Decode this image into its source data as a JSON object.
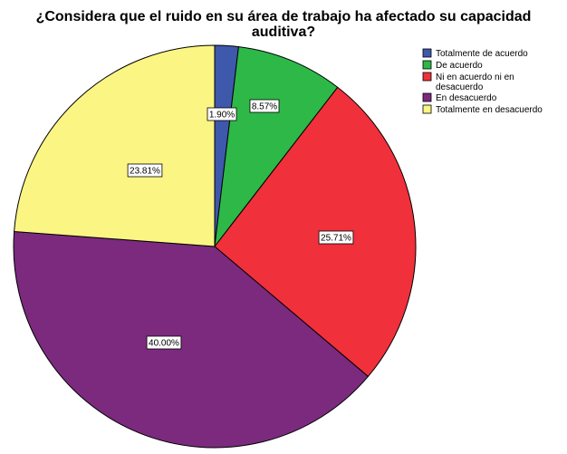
{
  "chart_data": {
    "type": "pie",
    "title_lines": [
      "¿Considera que el ruido en su área de trabajo ha afectado su capacidad",
      "auditiva?"
    ],
    "categories": [
      "Totalmente de acuerdo",
      "De acuerdo",
      "Ni en acuerdo ni en desacuerdo",
      "En desacuerdo",
      "Totalmente en desacuerdo"
    ],
    "legend_lines": [
      [
        "Totalmente de acuerdo"
      ],
      [
        "De acuerdo"
      ],
      [
        "Ni en acuerdo ni en",
        "desacuerdo"
      ],
      [
        "En desacuerdo"
      ],
      [
        "Totalmente en desacuerdo"
      ]
    ],
    "values": [
      1.9,
      8.57,
      25.71,
      40.0,
      23.81
    ],
    "data_labels": [
      "1.90%",
      "8.57%",
      "25.71%",
      "40.00%",
      "23.81%"
    ],
    "colors": [
      "#3e58ac",
      "#2eb848",
      "#f0303a",
      "#7b2a7e",
      "#fbf583"
    ],
    "legend_position": "top-right",
    "start_angle": "12 o'clock, clockwise"
  }
}
